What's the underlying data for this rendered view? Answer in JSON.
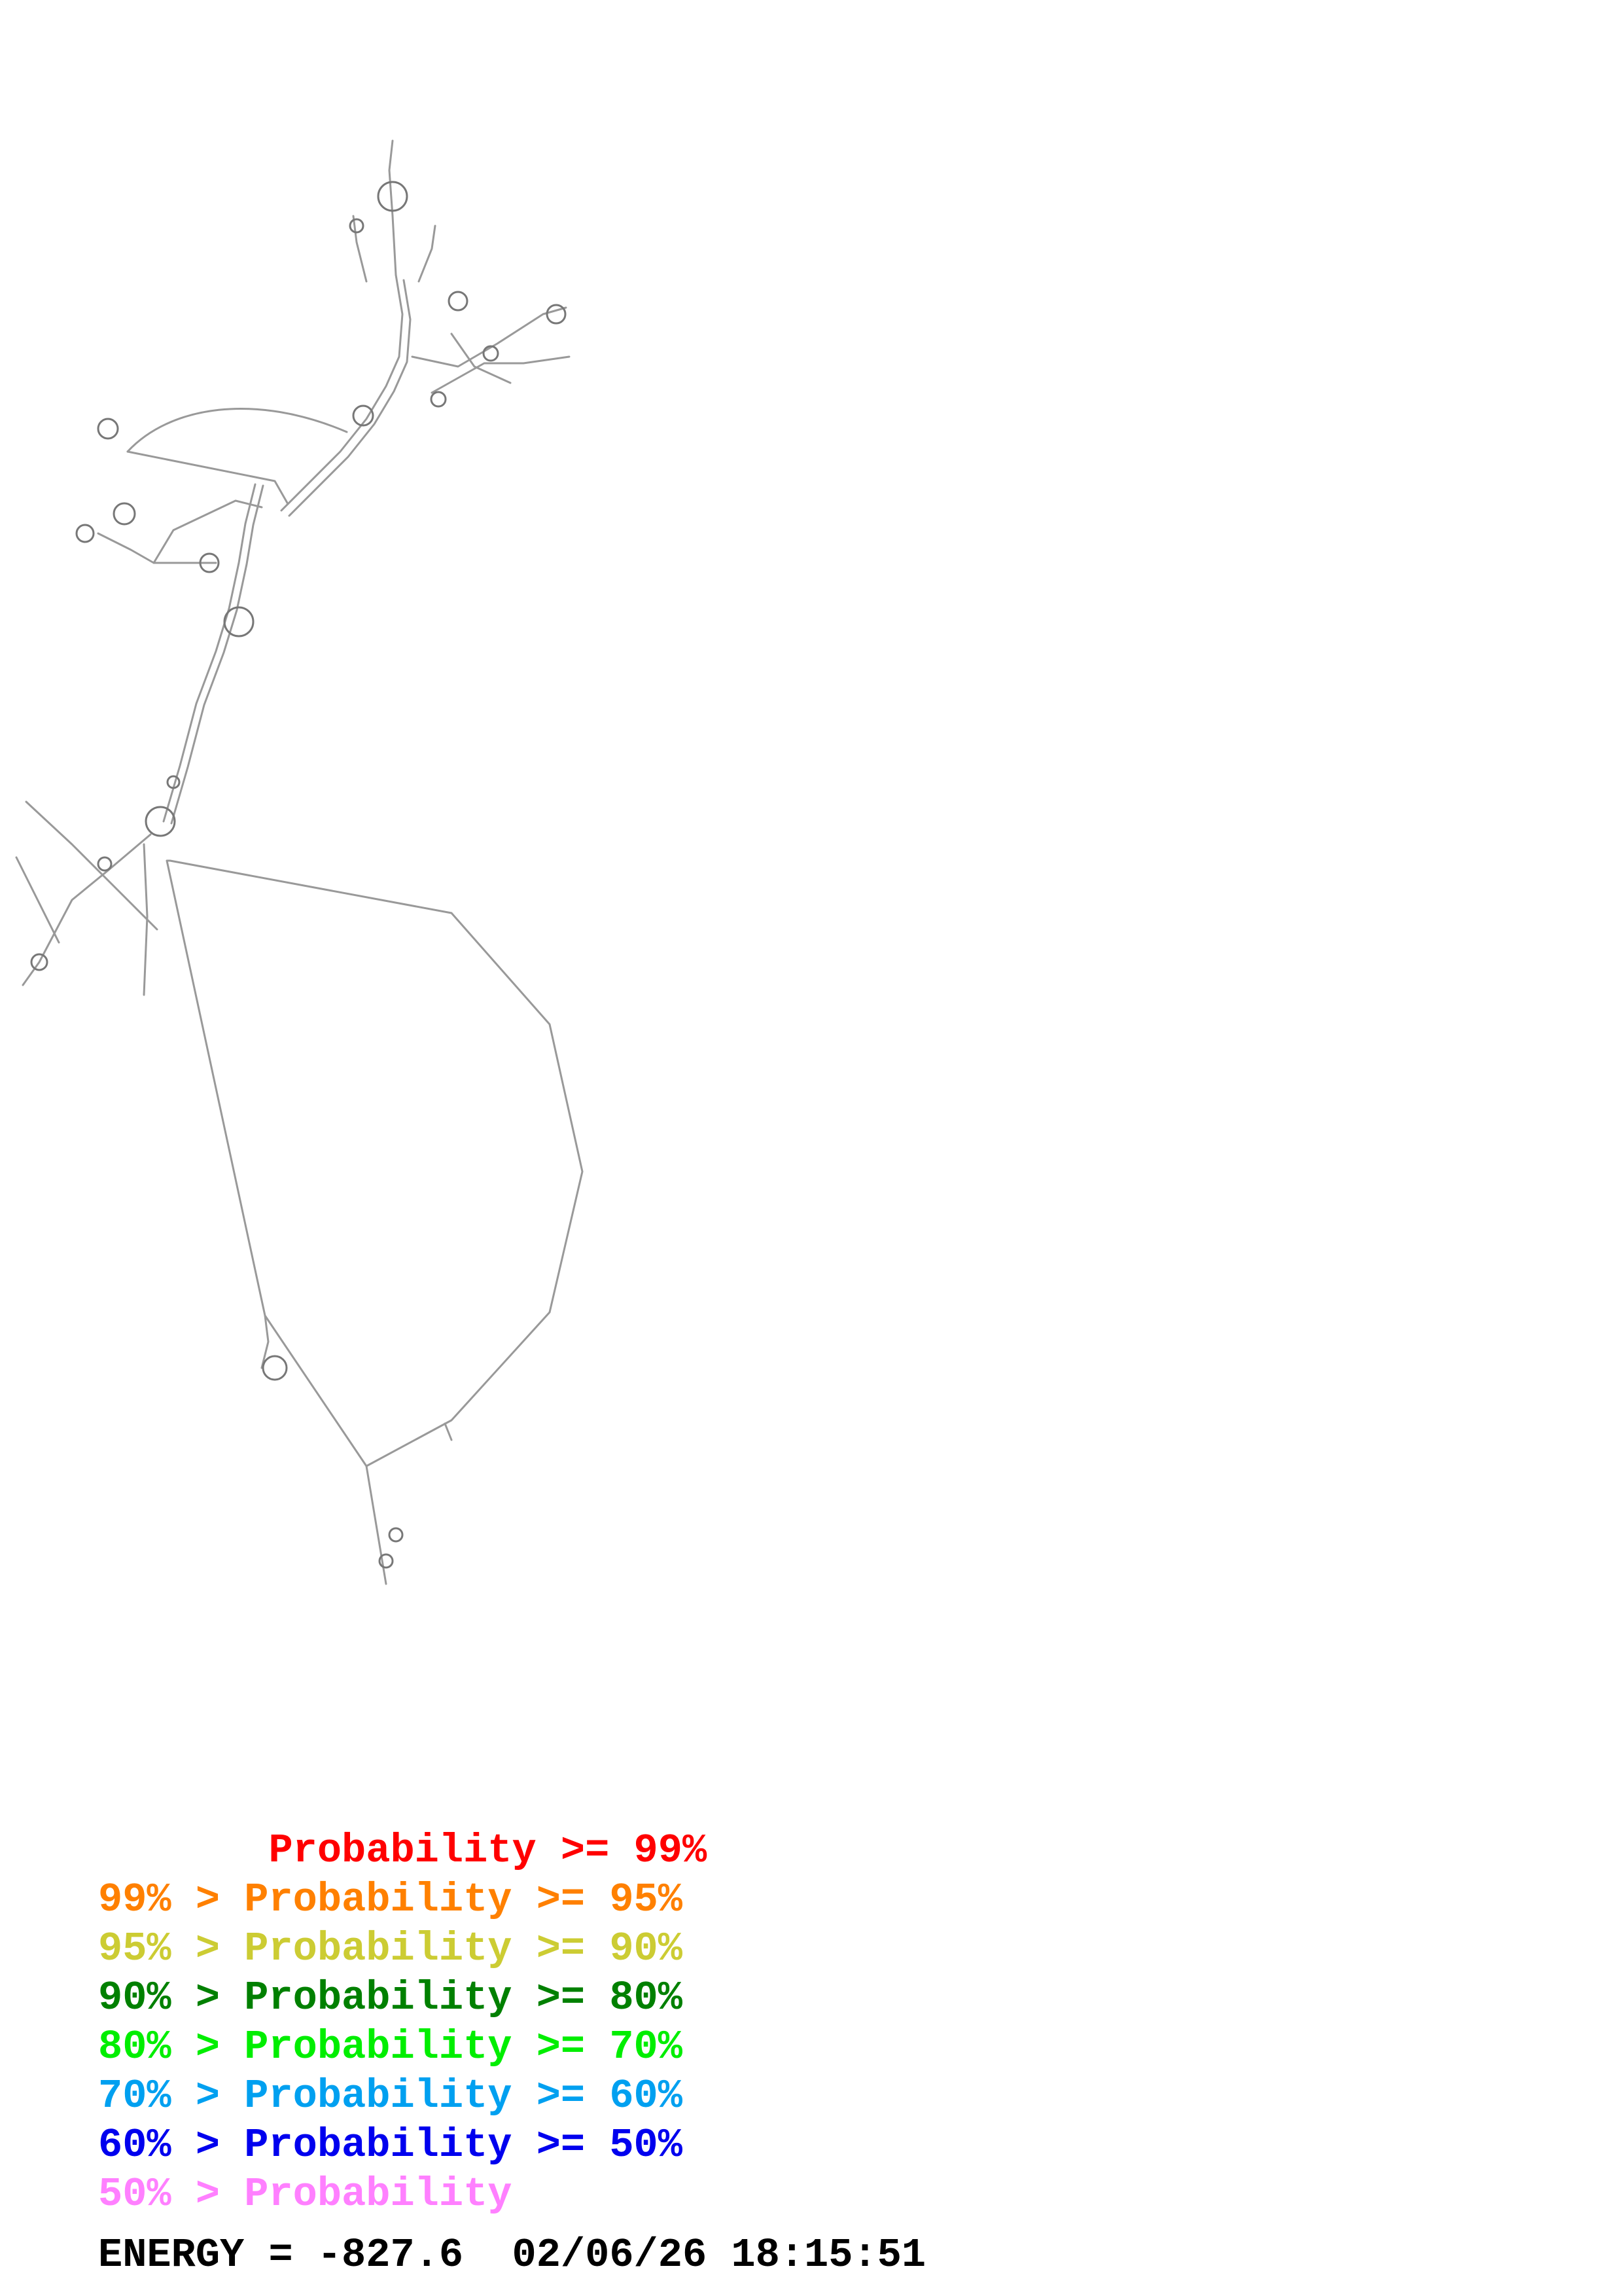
{
  "structure": {
    "backbone_color": "#999999",
    "pair_color": "#555555"
  },
  "legend": [
    {
      "text": "       Probability >= 99%",
      "color": "#ff0000"
    },
    {
      "text": "99% > Probability >= 95%",
      "color": "#ff8000"
    },
    {
      "text": "95% > Probability >= 90%",
      "color": "#cccc33"
    },
    {
      "text": "90% > Probability >= 80%",
      "color": "#008000"
    },
    {
      "text": "80% > Probability >= 70%",
      "color": "#00ee00"
    },
    {
      "text": "70% > Probability >= 60%",
      "color": "#00a0f0"
    },
    {
      "text": "60% > Probability >= 50%",
      "color": "#0000ee"
    },
    {
      "text": "50% > Probability",
      "color": "#ff80ff"
    }
  ],
  "footer": {
    "energy": "ENERGY = -827.6",
    "timestamp": "02/06/26 18:15:51"
  }
}
